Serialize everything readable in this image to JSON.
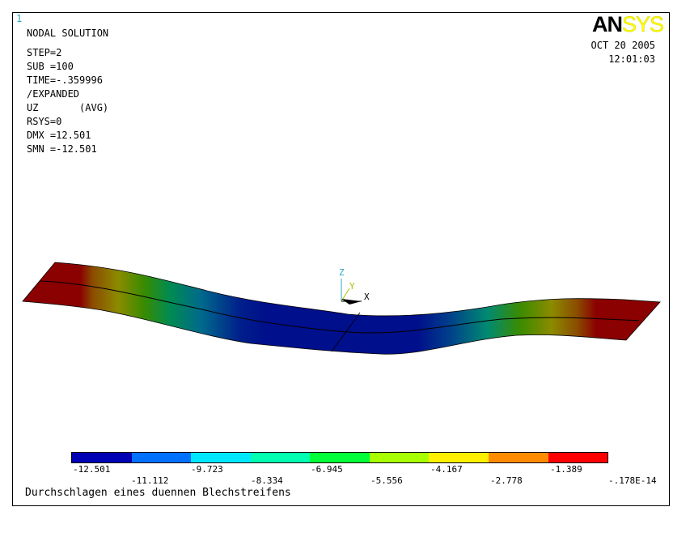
{
  "window": {
    "number": "1"
  },
  "logo": {
    "an": "AN",
    "sys": "SYS"
  },
  "datetime": {
    "date": "OCT 20 2005",
    "time": "12:01:03"
  },
  "info": {
    "title": "NODAL SOLUTION",
    "lines": [
      "STEP=2",
      "SUB =100",
      "TIME=-.359996",
      "/EXPANDED",
      "UZ       (AVG)",
      "RSYS=0",
      "DMX =12.501",
      "SMN =-12.501"
    ]
  },
  "triad": {
    "x": "X",
    "y": "Y",
    "z": "Z"
  },
  "legend": {
    "colors": [
      "#0000b4",
      "#0070ff",
      "#00e8ff",
      "#00ffb0",
      "#00ff38",
      "#a8ff00",
      "#fff000",
      "#ff8c00",
      "#ff0000"
    ],
    "values_top": [
      "-12.501",
      "-9.723",
      "-6.945",
      "-4.167",
      "-1.389"
    ],
    "values_bottom": [
      "-11.112",
      "-8.334",
      "-5.556",
      "-2.778",
      "-.178E-14"
    ]
  },
  "caption": "Durchschlagen eines duennen Blechstreifens"
}
